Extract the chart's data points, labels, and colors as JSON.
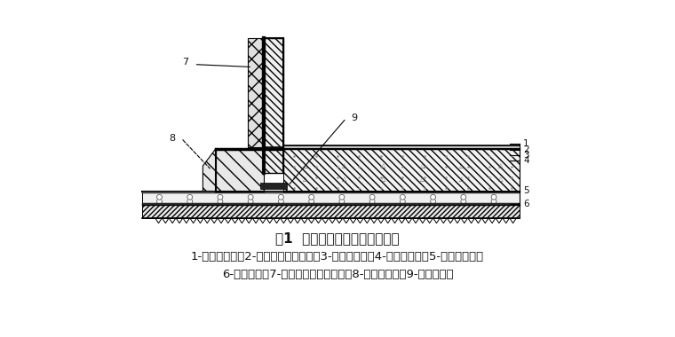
{
  "title": "图1  地下室聚氨酯涂膜防水构造",
  "caption_line1": "1-混凝土底板；2-细石混凝土保护层；3-涂膜防水层；4-砂浆找平层；5-混凝土帮层；",
  "caption_line2": "6-素土夸实；7-挤塑聚苯乙烯泡沫板；8-砖砚模板墙；9-钓板止水带",
  "bg_color": "#ffffff",
  "lc": "#000000",
  "title_fontsize": 11,
  "cap_fontsize": 9.5
}
